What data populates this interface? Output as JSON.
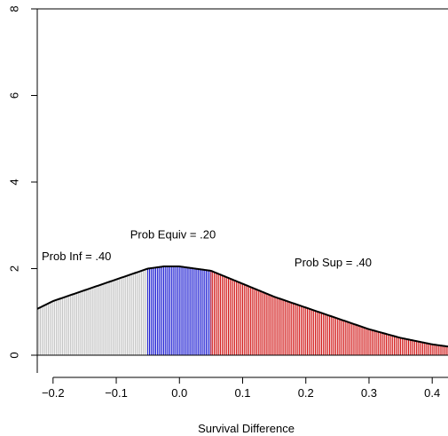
{
  "chart_data": {
    "type": "area",
    "title": "",
    "xlabel": "Survival Difference",
    "ylabel": "",
    "xlim": [
      -0.225,
      0.425
    ],
    "ylim": [
      0,
      8
    ],
    "grid": false,
    "xticks": [
      -0.2,
      -0.1,
      0.0,
      0.1,
      0.2,
      0.3,
      0.4
    ],
    "xtick_labels": [
      "−0.2",
      "−0.1",
      "0.0",
      "0.1",
      "0.2",
      "0.3",
      "0.4"
    ],
    "yticks": [
      0,
      2,
      4,
      6,
      8
    ],
    "ytick_labels": [
      "0",
      "2",
      "4",
      "6",
      "8"
    ],
    "density": {
      "x": [
        -0.225,
        -0.2,
        -0.15,
        -0.1,
        -0.05,
        -0.025,
        0.0,
        0.05,
        0.1,
        0.15,
        0.2,
        0.25,
        0.3,
        0.35,
        0.4,
        0.425
      ],
      "y": [
        1.07,
        1.25,
        1.5,
        1.75,
        2.0,
        2.05,
        2.05,
        1.95,
        1.65,
        1.35,
        1.1,
        0.85,
        0.6,
        0.4,
        0.25,
        0.2
      ]
    },
    "regions": [
      {
        "name": "inferior",
        "from": -0.225,
        "to": -0.05,
        "color": "#bebebe"
      },
      {
        "name": "equivalent",
        "from": -0.05,
        "to": 0.05,
        "color": "#0000cd"
      },
      {
        "name": "superior",
        "from": 0.05,
        "to": 0.425,
        "color": "#cd0000"
      }
    ],
    "annotations": [
      {
        "id": "prob-inf",
        "text": "Prob Inf = .40",
        "x": -0.225,
        "y": 2.2,
        "anchor": "start"
      },
      {
        "id": "prob-equiv",
        "text": "Prob Equiv = .20",
        "x": -0.085,
        "y": 2.7,
        "anchor": "start"
      },
      {
        "id": "prob-sup",
        "text": "Prob Sup = .40",
        "x": 0.175,
        "y": 2.05,
        "anchor": "start"
      }
    ]
  }
}
